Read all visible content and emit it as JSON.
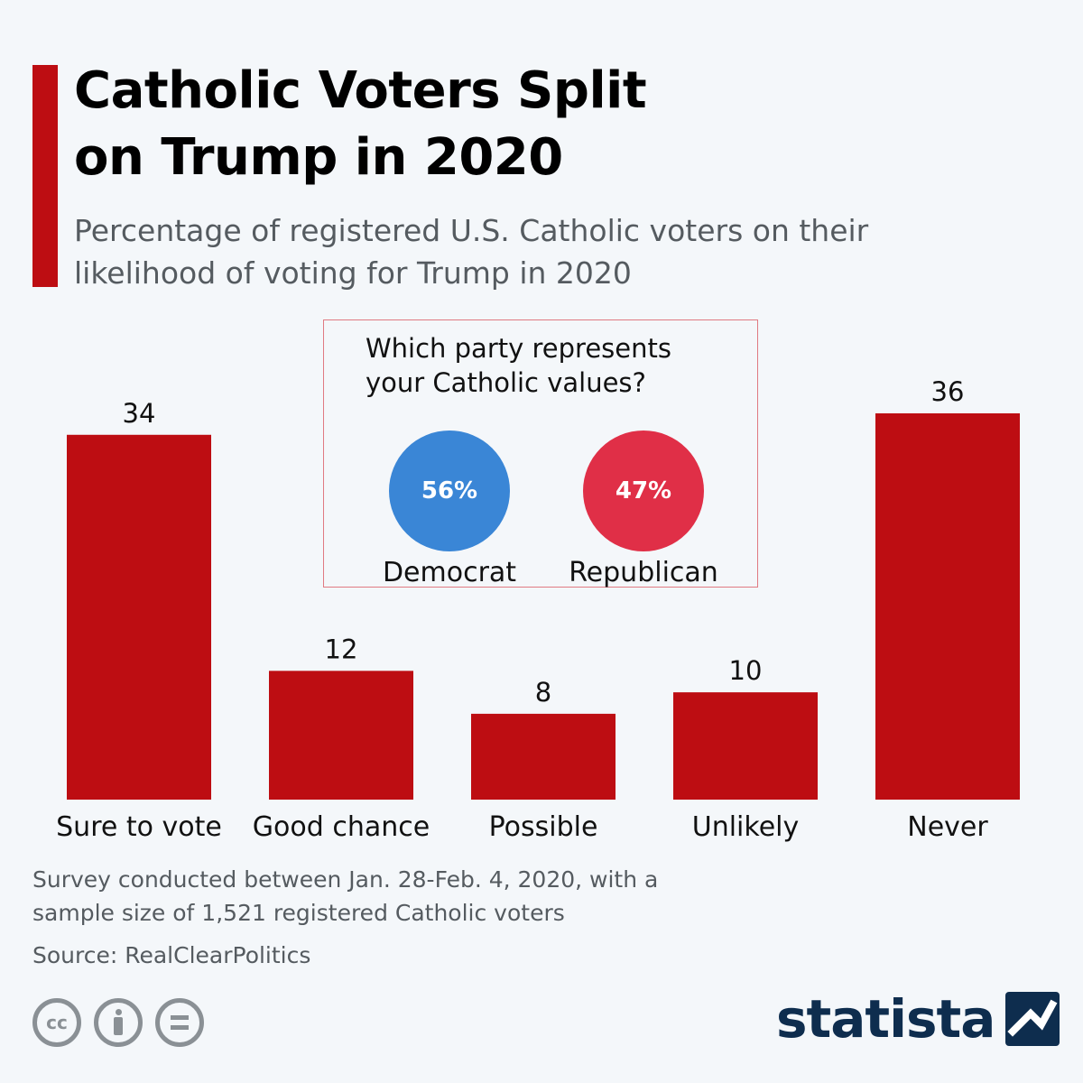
{
  "header": {
    "title_line1": "Catholic Voters Split",
    "title_line2": "on Trump in 2020",
    "subtitle_line1": "Percentage of registered U.S. Catholic voters on their",
    "subtitle_line2": "likelihood of voting for Trump in 2020"
  },
  "chart_data": {
    "type": "bar",
    "title": "Catholic Voters Split on Trump in 2020",
    "subtitle": "Percentage of registered U.S. Catholic voters on their likelihood of voting for Trump in 2020",
    "categories": [
      "Sure to vote",
      "Good chance",
      "Possible",
      "Unlikely",
      "Never"
    ],
    "values": [
      34,
      12,
      8,
      10,
      36
    ],
    "xlabel": "",
    "ylabel": "",
    "ylim": [
      0,
      36
    ],
    "grid": false,
    "bar_color": "#bd0d12"
  },
  "inset": {
    "question_line1": "Which party represents",
    "question_line2": "your Catholic values?",
    "parties": [
      {
        "label": "Democrat",
        "value": "56%",
        "color": "#3a86d6"
      },
      {
        "label": "Republican",
        "value": "47%",
        "color": "#e02f47"
      }
    ]
  },
  "footer": {
    "note_line1": "Survey conducted between Jan. 28-Feb. 4, 2020, with a",
    "note_line2": "sample size of 1,521 registered Catholic voters",
    "source": "Source: RealClearPolitics",
    "brand": "statista",
    "license_icons": [
      "cc-icon",
      "attribution-icon",
      "no-derivatives-icon"
    ]
  }
}
